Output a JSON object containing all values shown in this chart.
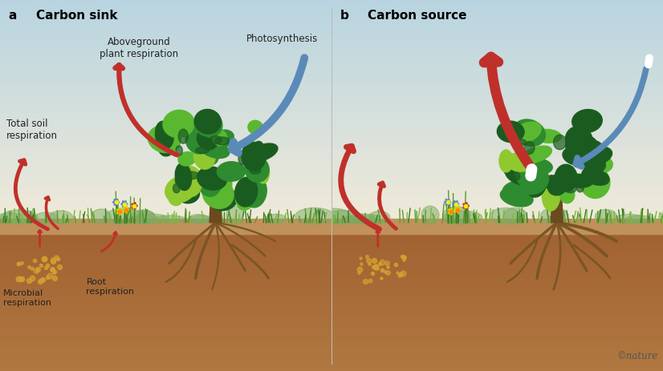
{
  "panel_a_title": "Carbon sink",
  "panel_b_title": "Carbon source",
  "label_a": "a",
  "label_b": "b",
  "label_aboveground": "Aboveground\nplant respiration",
  "label_photosynthesis": "Photosynthesis",
  "label_total_soil": "Total soil\nrespiration",
  "label_microbial": "Microbial\nrespiration",
  "label_root": "Root\nrespiration",
  "label_nature": "©nature",
  "bg_sky_top": "#f0ead8",
  "bg_sky_mid": "#deeae8",
  "bg_sky_bottom": "#b8d4e0",
  "bg_soil_top": "#c8a06a",
  "bg_soil_bottom": "#b07840",
  "grass_color_dark": "#3a7a20",
  "grass_color_mid": "#5a9a30",
  "grass_color_light": "#7ab840",
  "tree_trunk_color": "#6b4a1e",
  "tree_root_color": "#7a5525",
  "canopy_dark": "#1a5c20",
  "canopy_mid": "#2e8b30",
  "canopy_light": "#5ab830",
  "canopy_yellow_green": "#90c830",
  "arrow_red_dark": "#8b1a10",
  "arrow_red_mid": "#c0302a",
  "arrow_red_light": "#e05040",
  "arrow_blue_dark": "#3a6a9a",
  "arrow_blue_mid": "#5a8ab8",
  "arrow_blue_light": "#8ab4d0",
  "text_color": "#222222",
  "microbial_color": "#c8a028",
  "flower_blue": "#5588cc",
  "flower_red": "#cc3322",
  "flower_yellow": "#ddcc00",
  "distant_green": "#7aaa60",
  "soil_dot_color": "#d4a030"
}
